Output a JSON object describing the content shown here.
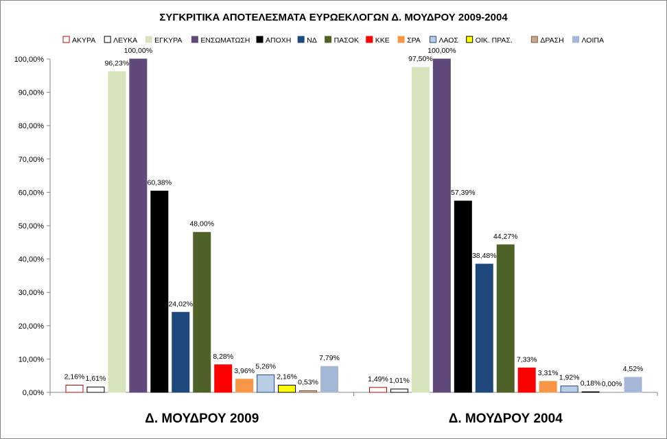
{
  "chart_data": {
    "type": "bar",
    "title": "ΣΥΓΚΡΙΤΙΚΑ ΑΠΟΤΕΛΕΣΜΑΤΑ  ΕΥΡΩΕΚΛΟΓΩΝ Δ. ΜΟΥΔΡΟΥ  2009-2004",
    "categories": [
      "Δ. ΜΟΥΔΡΟΥ 2009",
      "Δ. ΜΟΥΔΡΟΥ 2004"
    ],
    "ylim": [
      0,
      100
    ],
    "yticks": [
      "0,00%",
      "10,00%",
      "20,00%",
      "30,00%",
      "40,00%",
      "50,00%",
      "60,00%",
      "70,00%",
      "80,00%",
      "90,00%",
      "100,00%"
    ],
    "grid": false,
    "legend_position": "top",
    "series": [
      {
        "name": "ΑΚΥΡΑ",
        "values": [
          2.16,
          1.49
        ],
        "labels": [
          "2,16%",
          "1,49%"
        ],
        "color": "#ffffff",
        "stroke": "#c00000"
      },
      {
        "name": "ΛΕΥΚΑ",
        "values": [
          1.61,
          1.01
        ],
        "labels": [
          "1,61%",
          "1,01%"
        ],
        "color": "#ffffff",
        "stroke": "#000000"
      },
      {
        "name": "ΕΓΚΥΡΑ",
        "values": [
          96.23,
          97.5
        ],
        "labels": [
          "96,23%",
          "97,50%"
        ],
        "color": "#d7e4bd",
        "stroke": "#d7e4bd"
      },
      {
        "name": "ΕΝΣΩΜΑΤΩΣΗ",
        "values": [
          100.0,
          100.0
        ],
        "labels": [
          "100,00%",
          "100,00%"
        ],
        "color": "#604a7b",
        "stroke": "#604a7b"
      },
      {
        "name": "ΑΠΟΧΗ",
        "values": [
          60.38,
          57.39
        ],
        "labels": [
          "60,38%",
          "57,39%"
        ],
        "color": "#000000",
        "stroke": "#000000"
      },
      {
        "name": "ΝΔ",
        "values": [
          24.02,
          38.48
        ],
        "labels": [
          "24,02%",
          "38,48%"
        ],
        "color": "#1f497d",
        "stroke": "#1f497d"
      },
      {
        "name": "ΠΑΣΟΚ",
        "values": [
          48.0,
          44.27
        ],
        "labels": [
          "48,00%",
          "44,27%"
        ],
        "color": "#4f6228",
        "stroke": "#4f6228"
      },
      {
        "name": "ΚΚΕ",
        "values": [
          8.28,
          7.33
        ],
        "labels": [
          "8,28%",
          "7,33%"
        ],
        "color": "#ff0000",
        "stroke": "#ff0000"
      },
      {
        "name": "ΣΡΑ",
        "values": [
          3.96,
          3.31
        ],
        "labels": [
          "3,96%",
          "3,31%"
        ],
        "color": "#f79646",
        "stroke": "#f79646"
      },
      {
        "name": "ΛΑΟΣ",
        "values": [
          5.26,
          1.92
        ],
        "labels": [
          "5,26%",
          "1,92%"
        ],
        "color": "#b9cde5",
        "stroke": "#1f497d"
      },
      {
        "name": "ΟΙΚ. ΠΡΑΣ.",
        "values": [
          2.16,
          0.18
        ],
        "labels": [
          "2,16%",
          "0,18%"
        ],
        "color": "#ffff00",
        "stroke": "#000000"
      },
      {
        "name": "ΔΡΑΣΗ",
        "values": [
          0.53,
          0.0
        ],
        "labels": [
          "0,53%",
          "0,00%"
        ],
        "color": "#c4a68b",
        "stroke": "#7f6048"
      },
      {
        "name": "ΛΟΙΠΑ",
        "values": [
          7.79,
          4.52
        ],
        "labels": [
          "7,79%",
          "4,52%"
        ],
        "color": "#a6b8d8",
        "stroke": "#a6b8d8"
      }
    ]
  }
}
